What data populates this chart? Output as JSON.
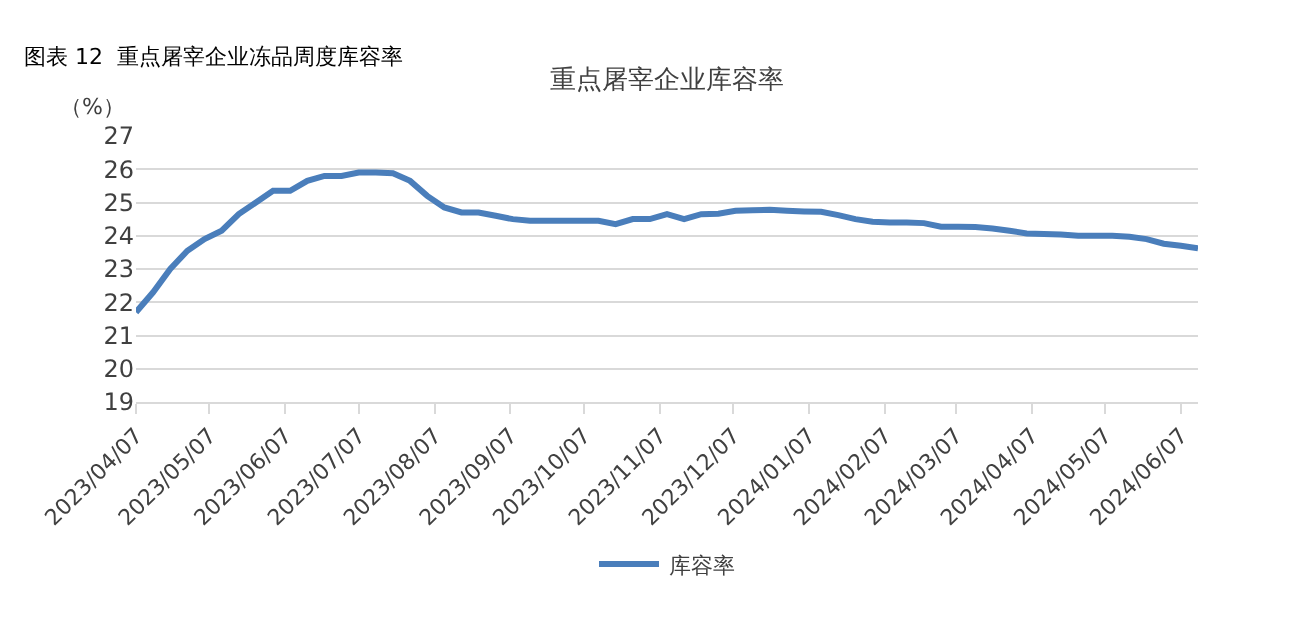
{
  "chart_data": {
    "type": "line",
    "title": "图表 12  重点屠宰企业冻品周度库容率",
    "subtitle": "重点屠宰企业库容率",
    "ylabel": "（%）",
    "x": [
      "2023-04-07",
      "2023-04-14",
      "2023-04-21",
      "2023-04-28",
      "2023-05-05",
      "2023-05-12",
      "2023-05-19",
      "2023-05-26",
      "2023-06-02",
      "2023-06-09",
      "2023-06-16",
      "2023-06-23",
      "2023-06-30",
      "2023-07-07",
      "2023-07-14",
      "2023-07-21",
      "2023-07-28",
      "2023-08-04",
      "2023-08-11",
      "2023-08-18",
      "2023-08-25",
      "2023-09-01",
      "2023-09-08",
      "2023-09-15",
      "2023-09-22",
      "2023-09-29",
      "2023-10-06",
      "2023-10-13",
      "2023-10-20",
      "2023-10-27",
      "2023-11-03",
      "2023-11-10",
      "2023-11-17",
      "2023-11-24",
      "2023-12-01",
      "2023-12-08",
      "2023-12-15",
      "2023-12-22",
      "2023-12-29",
      "2024-01-05",
      "2024-01-12",
      "2024-01-19",
      "2024-01-26",
      "2024-02-02",
      "2024-02-09",
      "2024-02-16",
      "2024-02-23",
      "2024-03-01",
      "2024-03-08",
      "2024-03-15",
      "2024-03-22",
      "2024-03-29",
      "2024-04-05",
      "2024-04-12",
      "2024-04-19",
      "2024-04-26",
      "2024-05-03",
      "2024-05-10",
      "2024-05-17",
      "2024-05-24",
      "2024-05-31",
      "2024-06-07",
      "2024-06-14"
    ],
    "series": [
      {
        "name": "库容率",
        "color": "#4a7ebb",
        "values": [
          21.7,
          22.3,
          23.0,
          23.55,
          23.9,
          24.15,
          24.65,
          25.0,
          25.35,
          25.35,
          25.65,
          25.8,
          25.8,
          25.9,
          25.9,
          25.88,
          25.65,
          25.2,
          24.85,
          24.7,
          24.7,
          24.6,
          24.5,
          24.45,
          24.45,
          24.45,
          24.45,
          24.45,
          24.35,
          24.5,
          24.5,
          24.65,
          24.5,
          24.65,
          24.66,
          24.75,
          24.77,
          24.78,
          24.75,
          24.73,
          24.72,
          24.62,
          24.5,
          24.42,
          24.4,
          24.4,
          24.38,
          24.27,
          24.27,
          24.26,
          24.22,
          24.15,
          24.07,
          24.05,
          24.04,
          24.0,
          24.0,
          24.0,
          23.97,
          23.9,
          23.76,
          23.7,
          23.62
        ]
      }
    ],
    "xlim": [
      "2023-04-07",
      "2024-06-14"
    ],
    "xticks": [
      {
        "value": "2023-04-07",
        "label": "2023/04/07"
      },
      {
        "value": "2023-05-07",
        "label": "2023/05/07"
      },
      {
        "value": "2023-06-07",
        "label": "2023/06/07"
      },
      {
        "value": "2023-07-07",
        "label": "2023/07/07"
      },
      {
        "value": "2023-08-07",
        "label": "2023/08/07"
      },
      {
        "value": "2023-09-07",
        "label": "2023/09/07"
      },
      {
        "value": "2023-10-07",
        "label": "2023/10/07"
      },
      {
        "value": "2023-11-07",
        "label": "2023/11/07"
      },
      {
        "value": "2023-12-07",
        "label": "2023/12/07"
      },
      {
        "value": "2024-01-07",
        "label": "2024/01/07"
      },
      {
        "value": "2024-02-07",
        "label": "2024/02/07"
      },
      {
        "value": "2024-03-07",
        "label": "2024/03/07"
      },
      {
        "value": "2024-04-07",
        "label": "2024/04/07"
      },
      {
        "value": "2024-05-07",
        "label": "2024/05/07"
      },
      {
        "value": "2024-06-07",
        "label": "2024/06/07"
      }
    ],
    "ylim": [
      19,
      27
    ],
    "yticks": [
      19,
      20,
      21,
      22,
      23,
      24,
      25,
      26,
      27
    ],
    "grid": "y",
    "legend": "bottom",
    "marker": "none",
    "line_style": "solid"
  }
}
